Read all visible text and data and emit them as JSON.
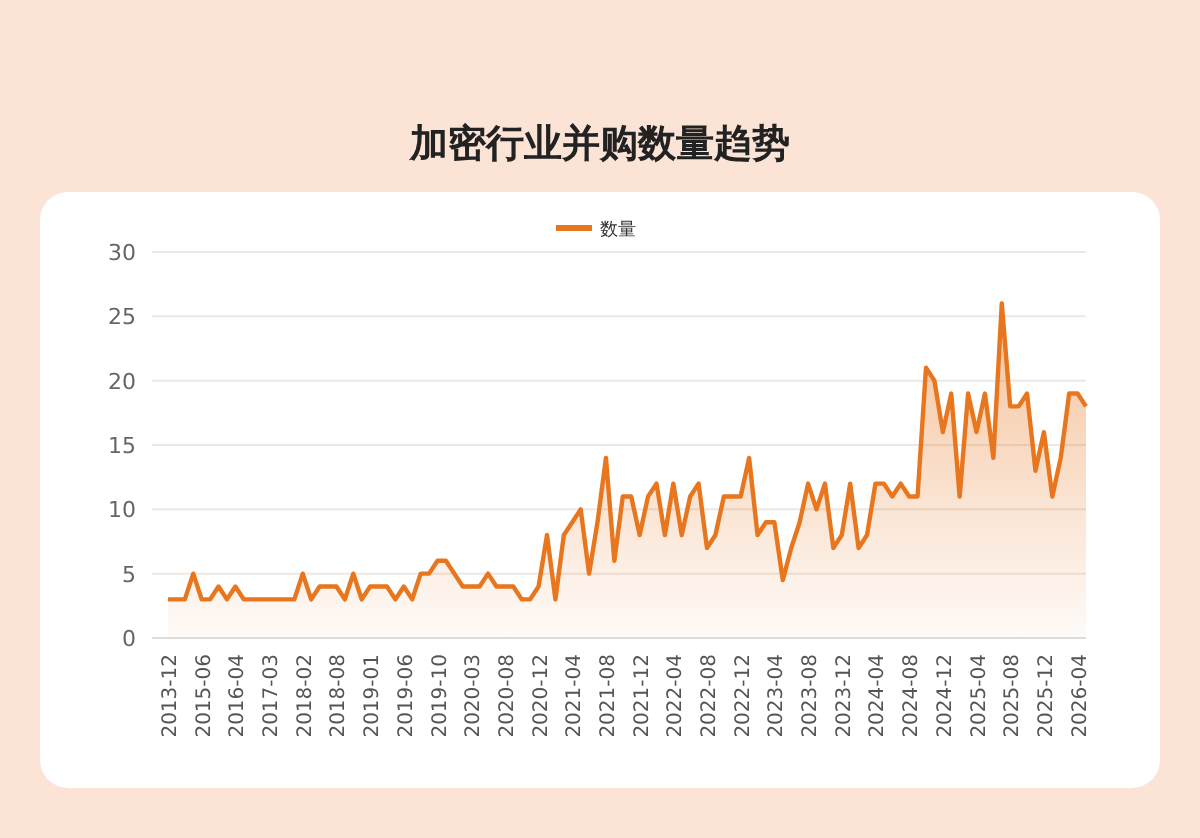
{
  "chart_data": {
    "type": "area",
    "title": "加密行业并购数量趋势",
    "categories": [
      "2013-12",
      null,
      null,
      null,
      "2015-06",
      null,
      null,
      null,
      "2016-04",
      null,
      null,
      null,
      "2017-03",
      null,
      null,
      null,
      "2018-02",
      null,
      null,
      null,
      "2018-08",
      null,
      null,
      null,
      "2019-01",
      null,
      null,
      null,
      "2019-06",
      null,
      null,
      null,
      "2019-10",
      null,
      null,
      null,
      "2020-03",
      null,
      null,
      null,
      "2020-08",
      null,
      null,
      null,
      "2020-12",
      null,
      null,
      null,
      "2021-04",
      null,
      null,
      null,
      "2021-08",
      null,
      null,
      null,
      "2021-12",
      null,
      null,
      null,
      "2022-04",
      null,
      null,
      null,
      "2022-08",
      null,
      null,
      null,
      "2022-12",
      null,
      null,
      null,
      "2023-04",
      null,
      null,
      null,
      "2023-08",
      null,
      null,
      null,
      "2023-12",
      null,
      null,
      null,
      "2024-04",
      null,
      null,
      null,
      "2024-08",
      null,
      null,
      null,
      "2024-12",
      null,
      null,
      null,
      "2025-04",
      null,
      null,
      null,
      "2025-08",
      null,
      null,
      null,
      "2025-12",
      null,
      null,
      null,
      "2026-04",
      null
    ],
    "series": [
      {
        "name": "数量",
        "color": "#e8761f",
        "values": [
          3,
          3,
          3,
          5,
          3,
          3,
          4,
          3,
          4,
          3,
          3,
          3,
          3,
          3,
          3,
          3,
          5,
          3,
          4,
          4,
          4,
          3,
          5,
          3,
          4,
          4,
          4,
          3,
          4,
          3,
          5,
          5,
          6,
          6,
          5,
          4,
          4,
          4,
          5,
          4,
          4,
          4,
          3,
          3,
          4,
          8,
          3,
          8,
          9,
          10,
          5,
          9,
          14,
          6,
          11,
          11,
          8,
          11,
          12,
          8,
          12,
          8,
          11,
          12,
          7,
          8,
          11,
          11,
          11,
          14,
          8,
          9,
          9,
          4.5,
          7,
          9,
          12,
          10,
          12,
          7,
          8,
          12,
          7,
          8,
          12,
          12,
          11,
          12,
          11,
          11,
          21,
          20,
          16,
          19,
          11,
          19,
          16,
          19,
          14,
          26,
          18,
          18,
          19,
          13,
          16,
          11,
          14,
          19,
          19,
          18
        ]
      }
    ],
    "ylim": [
      0,
      30
    ],
    "yticks": [
      0,
      5,
      10,
      15,
      20,
      25,
      30
    ],
    "grid": "y",
    "legend": "top"
  }
}
